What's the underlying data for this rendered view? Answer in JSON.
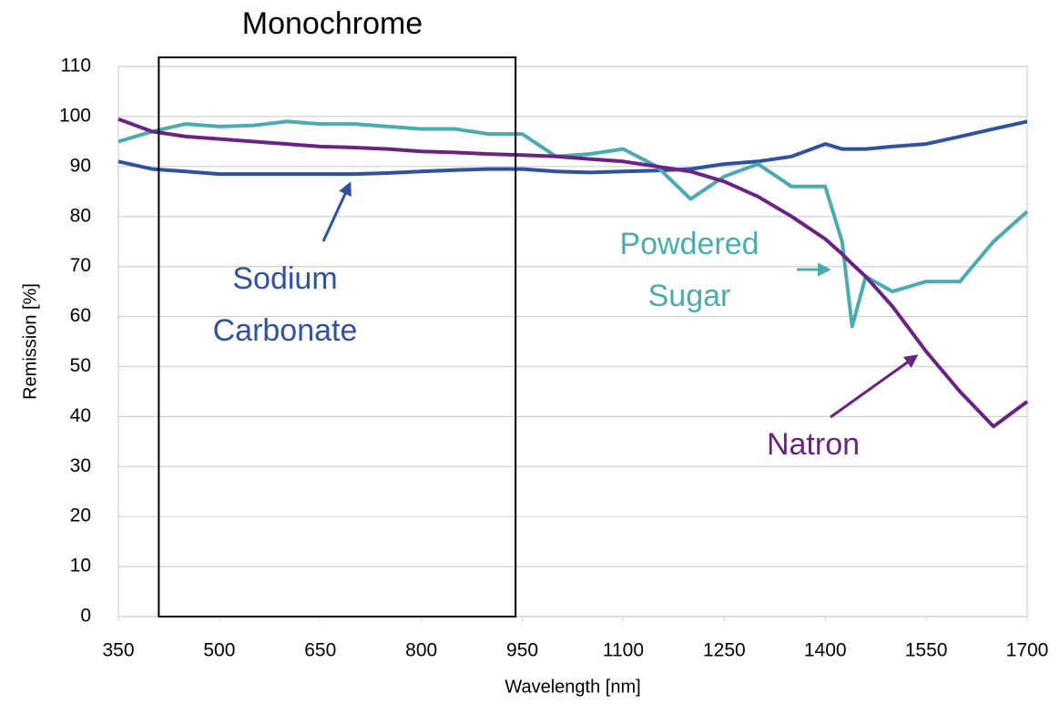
{
  "chart_data": {
    "type": "line",
    "xlabel": "Wavelength [nm]",
    "ylabel": "Remission [%]",
    "x": [
      350,
      400,
      450,
      500,
      550,
      600,
      650,
      700,
      750,
      800,
      850,
      900,
      950,
      1000,
      1050,
      1100,
      1150,
      1200,
      1250,
      1300,
      1350,
      1400,
      1425,
      1440,
      1460,
      1500,
      1550,
      1600,
      1650,
      1700
    ],
    "series": [
      {
        "name": "Sodium Carbonate",
        "color": "#2f52a0",
        "values": [
          91,
          89.5,
          89,
          88.5,
          88.5,
          88.5,
          88.5,
          88.5,
          88.7,
          89,
          89.3,
          89.5,
          89.5,
          89,
          88.8,
          89,
          89.2,
          89.5,
          90.5,
          91,
          92,
          94.5,
          93.5,
          93.5,
          93.5,
          94,
          94.5,
          96,
          97.5,
          99
        ]
      },
      {
        "name": "Powdered Sugar",
        "color": "#4aabb0",
        "values": [
          95,
          97,
          98.5,
          98,
          98.2,
          99,
          98.5,
          98.5,
          98,
          97.5,
          97.5,
          96.5,
          96.5,
          92,
          92.5,
          93.5,
          90,
          83.5,
          88,
          90.5,
          86,
          86,
          75,
          58,
          68,
          65,
          67,
          67,
          75,
          81
        ]
      },
      {
        "name": "Natron",
        "color": "#6a2383",
        "values": [
          99.5,
          97,
          96,
          95.5,
          95,
          94.5,
          94,
          93.8,
          93.5,
          93,
          92.8,
          92.5,
          92.3,
          92,
          91.5,
          91,
          90,
          89,
          87,
          84,
          80,
          75.5,
          72.5,
          70.5,
          68,
          62,
          53,
          45,
          38,
          43
        ]
      }
    ],
    "annotations": [
      {
        "lines": [
          "Sodium",
          "Carbonate"
        ],
        "color": "#2f52a0"
      },
      {
        "lines": [
          "Powdered",
          "Sugar"
        ],
        "color": "#4aabb0"
      },
      {
        "lines": [
          "Natron"
        ],
        "color": "#6a2383"
      }
    ],
    "highlight": {
      "label": "Monochrome",
      "xrange": [
        410,
        940
      ]
    },
    "xlim": [
      350,
      1700
    ],
    "xticks": [
      350,
      500,
      650,
      800,
      950,
      1100,
      1250,
      1400,
      1550,
      1700
    ],
    "ylim": [
      0,
      110
    ],
    "yticks": [
      0,
      10,
      20,
      30,
      40,
      50,
      60,
      70,
      80,
      90,
      100,
      110
    ],
    "grid": true
  }
}
